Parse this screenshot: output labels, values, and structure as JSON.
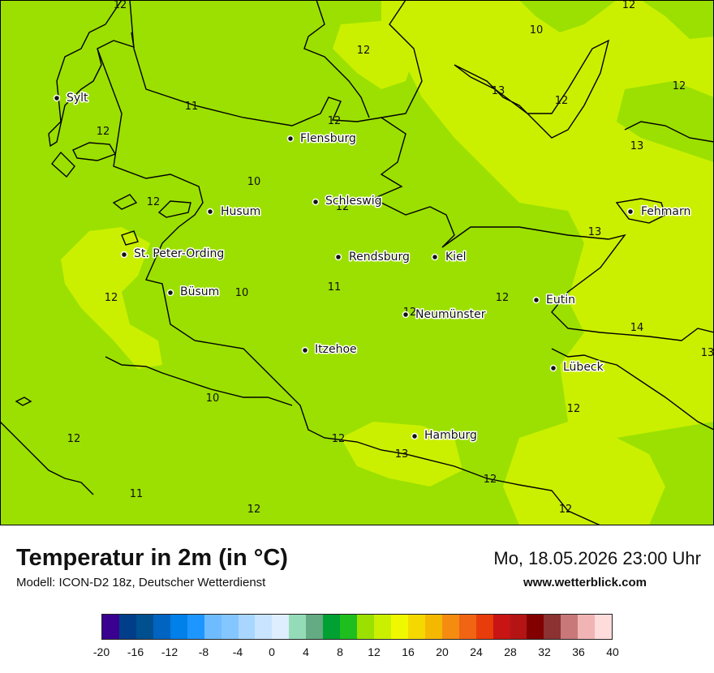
{
  "map": {
    "colors": {
      "c10": "#9be000",
      "c12": "#caf000",
      "c14": "#c6ee00"
    },
    "cities": [
      {
        "name": "Sylt"
      },
      {
        "name": "Flensburg"
      },
      {
        "name": "Schleswig"
      },
      {
        "name": "Husum"
      },
      {
        "name": "St. Peter-Ording"
      },
      {
        "name": "Rendsburg"
      },
      {
        "name": "Kiel"
      },
      {
        "name": "Fehmarn"
      },
      {
        "name": "Büsum"
      },
      {
        "name": "Eutin"
      },
      {
        "name": "Neumünster"
      },
      {
        "name": "Itzehoe"
      },
      {
        "name": "Lübeck"
      },
      {
        "name": "Hamburg"
      }
    ],
    "isolines": [
      "12",
      "10",
      "12",
      "12",
      "13",
      "12",
      "12",
      "11",
      "12",
      "12",
      "13",
      "10",
      "12",
      "12",
      "13",
      "12",
      "10",
      "11",
      "12",
      "12",
      "12",
      "14",
      "13",
      "10",
      "12",
      "12",
      "12",
      "13",
      "12",
      "12",
      "11",
      "12"
    ]
  },
  "footer": {
    "title": "Temperatur in 2m (in °C)",
    "model": "Modell: ICON-D2 18z, Deutscher Wetterdienst",
    "datetime": "Mo, 18.05.2026 23:00 Uhr",
    "website": "www.wetterblick.com"
  },
  "legend": {
    "colors": [
      "#3a0090",
      "#003e8a",
      "#00508f",
      "#0064c0",
      "#0080e8",
      "#1e96ff",
      "#6ebcff",
      "#84c6ff",
      "#a8d6ff",
      "#c8e4ff",
      "#deeeff",
      "#94dcb8",
      "#64aa82",
      "#00a033",
      "#1fbe1f",
      "#9be000",
      "#caf000",
      "#f0f800",
      "#f5d800",
      "#f5b800",
      "#f58c10",
      "#f06414",
      "#e83c0a",
      "#c81414",
      "#b41414",
      "#820000",
      "#8c3232",
      "#c87878",
      "#f0b4b4",
      "#ffdcdc"
    ],
    "ticks": [
      "-20",
      "-16",
      "-12",
      "-8",
      "-4",
      "0",
      "4",
      "8",
      "12",
      "16",
      "20",
      "24",
      "28",
      "32",
      "36",
      "40"
    ]
  }
}
